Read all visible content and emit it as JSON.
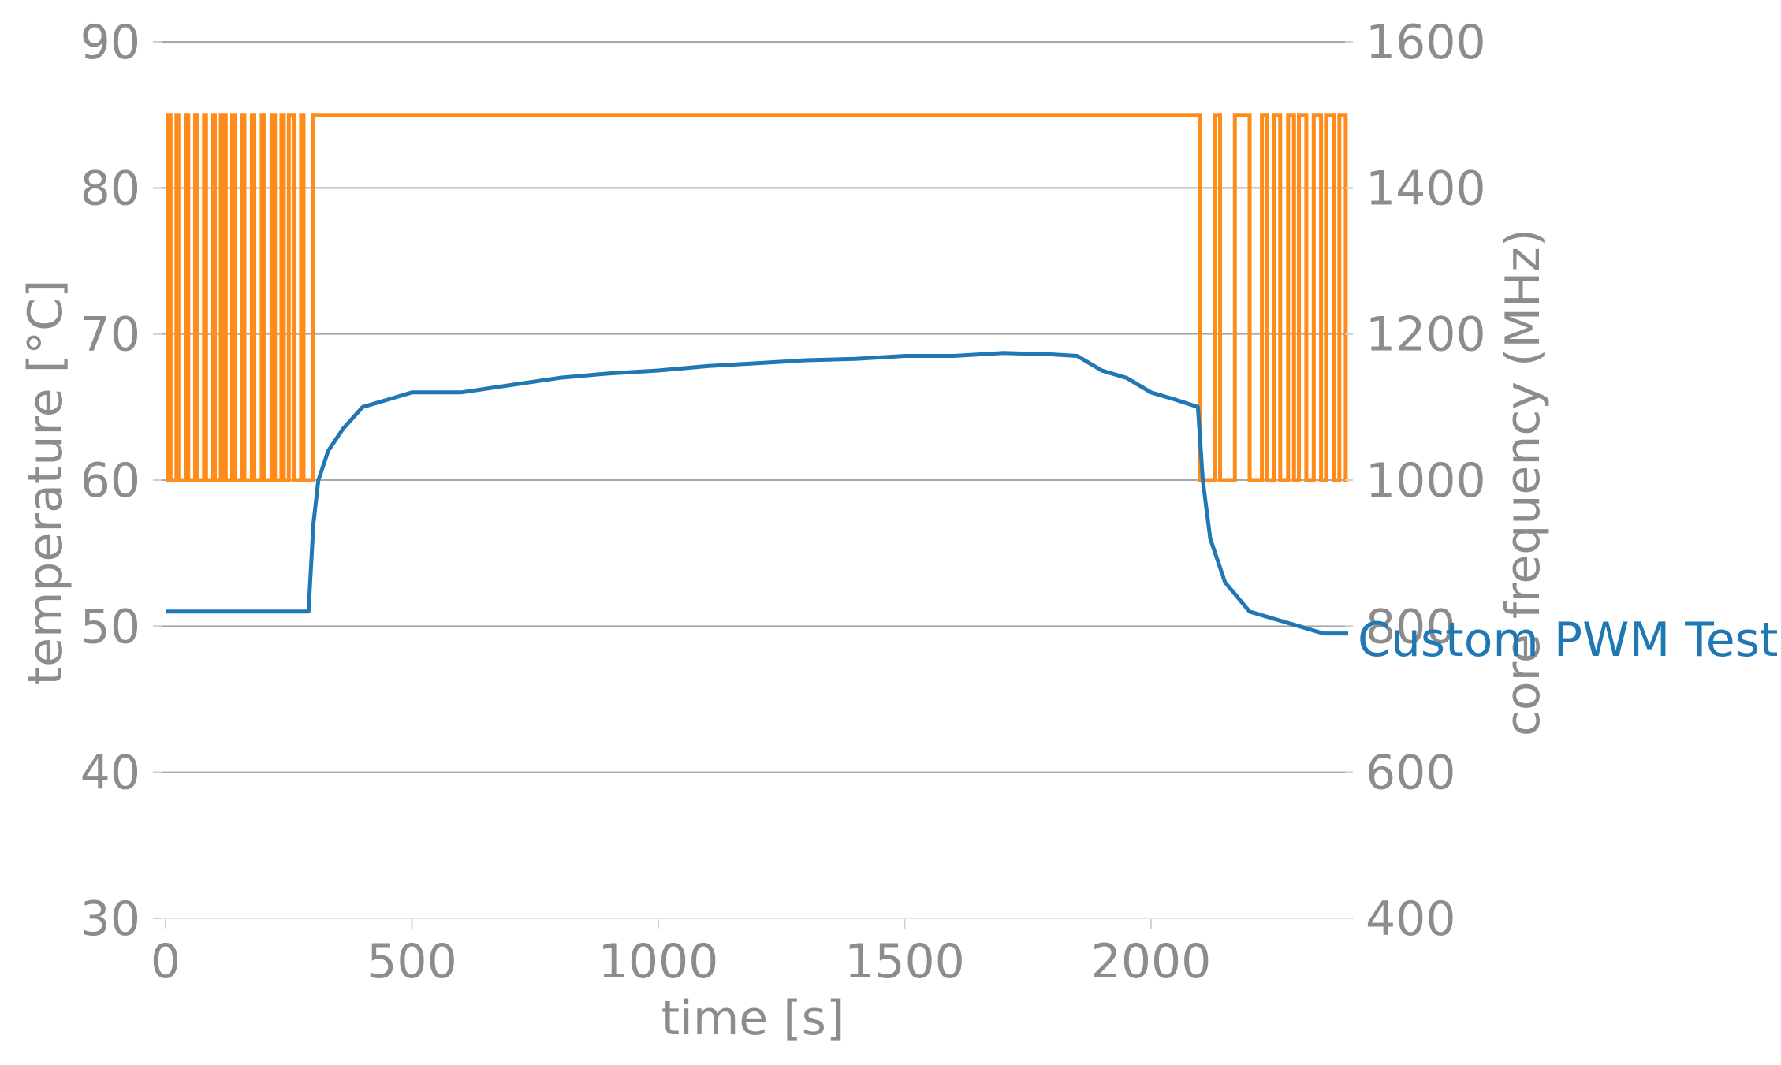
{
  "chart_data": {
    "type": "line",
    "xlabel": "time [s]",
    "ylabel_left": "temperature [°C]",
    "ylabel_right": "core frequency (MHz)",
    "xlim": [
      0,
      2400
    ],
    "ylim_left": [
      30,
      90
    ],
    "ylim_right": [
      400,
      1600
    ],
    "xticks": [
      0,
      500,
      1000,
      1500,
      2000
    ],
    "yticks_left": [
      30,
      40,
      50,
      60,
      70,
      80,
      90
    ],
    "yticks_right": [
      400,
      600,
      800,
      1000,
      1200,
      1400,
      1600
    ],
    "grid": "horizontal",
    "colors": {
      "temperature": "#1f77b4",
      "frequency": "#ff8c1a",
      "text": "#8c8c8c"
    },
    "series": [
      {
        "name": "Custom PWM Test",
        "axis": "left",
        "x": [
          0,
          50,
          100,
          150,
          200,
          250,
          290,
          300,
          310,
          330,
          360,
          400,
          450,
          500,
          600,
          700,
          800,
          900,
          1000,
          1100,
          1200,
          1300,
          1400,
          1500,
          1600,
          1700,
          1800,
          1850,
          1900,
          1950,
          2000,
          2050,
          2095,
          2105,
          2120,
          2150,
          2200,
          2250,
          2300,
          2350,
          2400
        ],
        "values": [
          51,
          51,
          51,
          51,
          51,
          51,
          51,
          57,
          60,
          62,
          63.5,
          65,
          65.5,
          66,
          66,
          66.5,
          67,
          67.3,
          67.5,
          67.8,
          68,
          68.2,
          68.3,
          68.5,
          68.5,
          68.7,
          68.6,
          68.5,
          67.5,
          67,
          66,
          65.5,
          65,
          60,
          56,
          53,
          51,
          50.5,
          50,
          49.5,
          49.5
        ]
      },
      {
        "name": "core frequency",
        "axis": "right",
        "type": "step",
        "x": [
          0,
          5,
          10,
          22,
          26,
          42,
          46,
          60,
          64,
          78,
          82,
          95,
          100,
          112,
          116,
          118,
          122,
          135,
          140,
          155,
          160,
          175,
          180,
          195,
          200,
          215,
          222,
          235,
          240,
          250,
          260,
          275,
          280,
          300,
          2100,
          2130,
          2140,
          2170,
          2200,
          2225,
          2235,
          2250,
          2262,
          2278,
          2290,
          2300,
          2315,
          2330,
          2345,
          2355,
          2372,
          2382,
          2395
        ],
        "values": [
          1000,
          1500,
          1000,
          1500,
          1000,
          1500,
          1000,
          1500,
          1000,
          1500,
          1000,
          1500,
          1000,
          1500,
          1000,
          1500,
          1000,
          1500,
          1000,
          1500,
          1000,
          1500,
          1000,
          1500,
          1000,
          1500,
          1000,
          1500,
          1000,
          1500,
          1000,
          1500,
          1000,
          1500,
          1000,
          1500,
          1000,
          1500,
          1000,
          1500,
          1000,
          1500,
          1000,
          1500,
          1000,
          1500,
          1000,
          1500,
          1000,
          1500,
          1000,
          1500,
          1000
        ]
      }
    ]
  }
}
